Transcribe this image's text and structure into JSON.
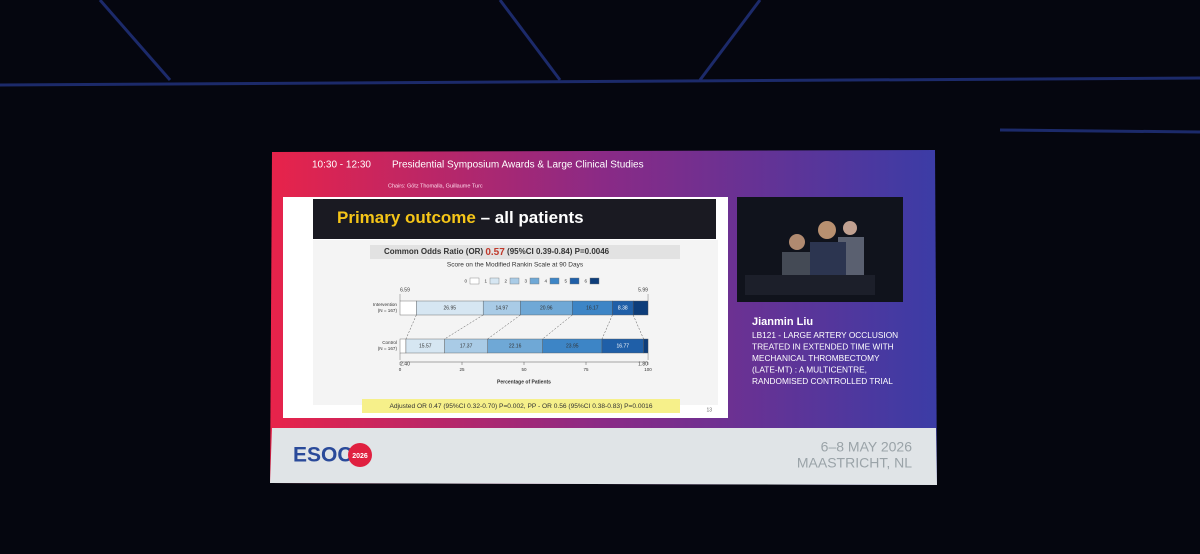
{
  "header": {
    "time": "10:30 - 12:30",
    "session": "Presidential Symposium Awards & Large Clinical Studies",
    "chairs": "Chairs: Götz Thomalla, Guillaume Turc"
  },
  "slide": {
    "title_highlight": "Primary outcome",
    "title_rest": " – all patients",
    "or_label": "Common Odds Ratio (OR)",
    "or_value": "0.57",
    "or_detail": "(95%CI 0.39-0.84) P=0.0046",
    "adjusted": "Adjusted OR 0.47 (95%CI 0.32-0.70) P=0.002, PP - OR 0.56 (95%CI 0.38-0.83) P=0.0016",
    "page_number": "13"
  },
  "chart_data": {
    "type": "stacked-bar-horizontal",
    "title": "Score on the Modified Rankin Scale at 90 Days",
    "xlabel": "Percentage of Patients",
    "categories": [
      "Intervention",
      "Control"
    ],
    "group_sizes": [
      "(N = 167)",
      "(N = 167)"
    ],
    "xlim": [
      0,
      100
    ],
    "xticks": [
      0,
      25,
      50,
      75,
      100
    ],
    "series": [
      {
        "name": "0",
        "color": "#ffffff",
        "values": [
          6.59,
          2.4
        ],
        "value_labels": [
          "6.59",
          "2.40"
        ]
      },
      {
        "name": "1",
        "color": "#d6e6f2",
        "values": [
          26.95,
          15.57
        ],
        "value_labels": [
          "26.95",
          "15.57"
        ]
      },
      {
        "name": "2",
        "color": "#a9cbe6",
        "values": [
          14.97,
          17.37
        ],
        "value_labels": [
          "14.97",
          "17.37"
        ]
      },
      {
        "name": "3",
        "color": "#6fa8d6",
        "values": [
          20.96,
          22.16
        ],
        "value_labels": [
          "20.96",
          "22.16"
        ]
      },
      {
        "name": "4",
        "color": "#3d85c6",
        "values": [
          16.17,
          23.95
        ],
        "value_labels": [
          "16.17",
          "23.95"
        ]
      },
      {
        "name": "5",
        "color": "#1f5fa8",
        "values": [
          8.38,
          16.77
        ],
        "value_labels": [
          "8.38",
          "16.77"
        ]
      },
      {
        "name": "6",
        "color": "#0d3d7a",
        "values": [
          5.99,
          1.8
        ],
        "value_labels": [
          "5.99",
          "1.80"
        ]
      }
    ]
  },
  "speaker": {
    "name": "Jianmin Liu",
    "talk_lines": [
      "LB121 - LARGE ARTERY OCCLUSION",
      "TREATED IN EXTENDED TIME WITH",
      "MECHANICAL THROMBECTOMY",
      "(LATE-MT) : A MULTICENTRE,",
      "RANDOMISED CONTROLLED TRIAL"
    ]
  },
  "footer": {
    "logo": "ESOC",
    "logo_year": "2026",
    "dates": "6–8 MAY 2026",
    "location": "MAASTRICHT, NL"
  }
}
